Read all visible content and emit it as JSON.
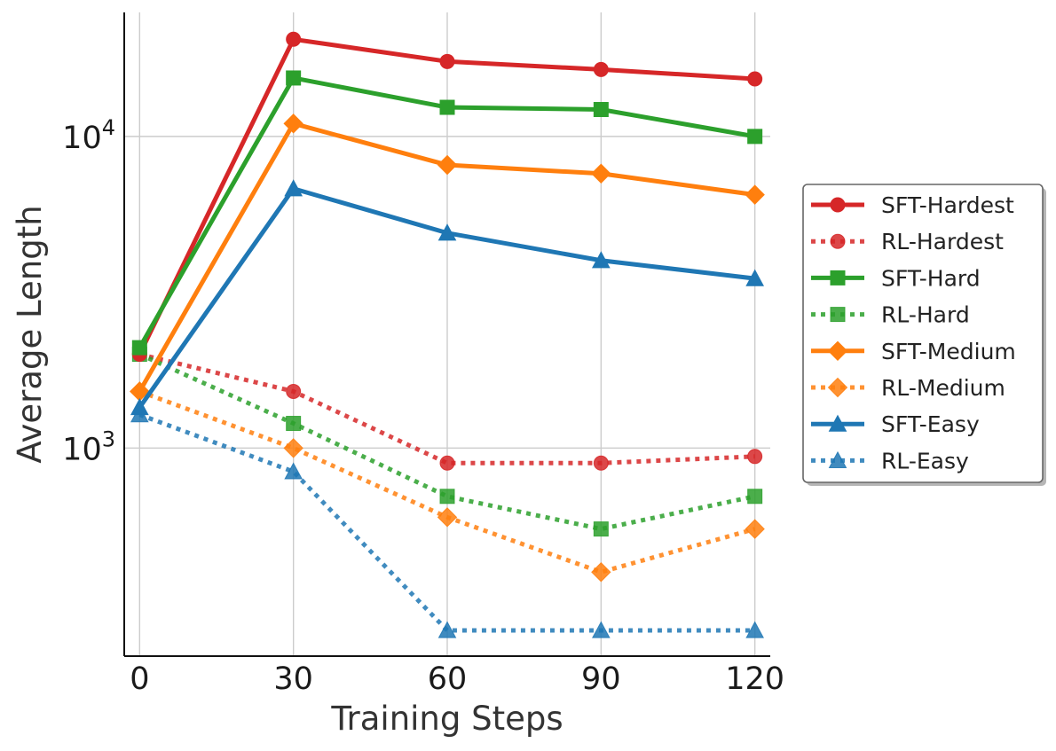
{
  "chart_data": {
    "type": "line",
    "title": "",
    "xlabel": "Training Steps",
    "ylabel": "Average Length",
    "x": [
      0,
      30,
      60,
      90,
      120
    ],
    "x_tick_labels": [
      "0",
      "30",
      "60",
      "90",
      "120"
    ],
    "xlim": [
      -3,
      123
    ],
    "y_scale": "log",
    "ylim": [
      215,
      25000
    ],
    "y_ticks": [
      1000,
      10000
    ],
    "y_tick_labels": [
      {
        "base": "10",
        "exp": "3"
      },
      {
        "base": "10",
        "exp": "4"
      }
    ],
    "grid": true,
    "legend_position": "center-right, outside plot",
    "series": [
      {
        "name": "SFT-Hardest",
        "color": "#d62728",
        "style": "solid",
        "marker": "circle",
        "values": [
          2000,
          20500,
          17400,
          16400,
          15300
        ]
      },
      {
        "name": "RL-Hardest",
        "color": "#d62728",
        "style": "dotted",
        "marker": "circle",
        "values": [
          2000,
          1520,
          895,
          895,
          940
        ]
      },
      {
        "name": "SFT-Hard",
        "color": "#2ca02c",
        "style": "solid",
        "marker": "square",
        "values": [
          2100,
          15400,
          12400,
          12200,
          10000
        ]
      },
      {
        "name": "RL-Hard",
        "color": "#2ca02c",
        "style": "dotted",
        "marker": "square",
        "values": [
          2000,
          1200,
          700,
          550,
          700
        ]
      },
      {
        "name": "SFT-Medium",
        "color": "#ff7f0e",
        "style": "solid",
        "marker": "diamond",
        "values": [
          1520,
          11000,
          8100,
          7600,
          6500
        ]
      },
      {
        "name": "RL-Medium",
        "color": "#ff7f0e",
        "style": "dotted",
        "marker": "diamond",
        "values": [
          1520,
          1000,
          600,
          400,
          550
        ]
      },
      {
        "name": "SFT-Easy",
        "color": "#1f77b4",
        "style": "solid",
        "marker": "triangle",
        "values": [
          1350,
          6800,
          4900,
          4000,
          3500
        ]
      },
      {
        "name": "RL-Easy",
        "color": "#1f77b4",
        "style": "dotted",
        "marker": "triangle",
        "values": [
          1280,
          840,
          260,
          260,
          260
        ]
      }
    ]
  }
}
